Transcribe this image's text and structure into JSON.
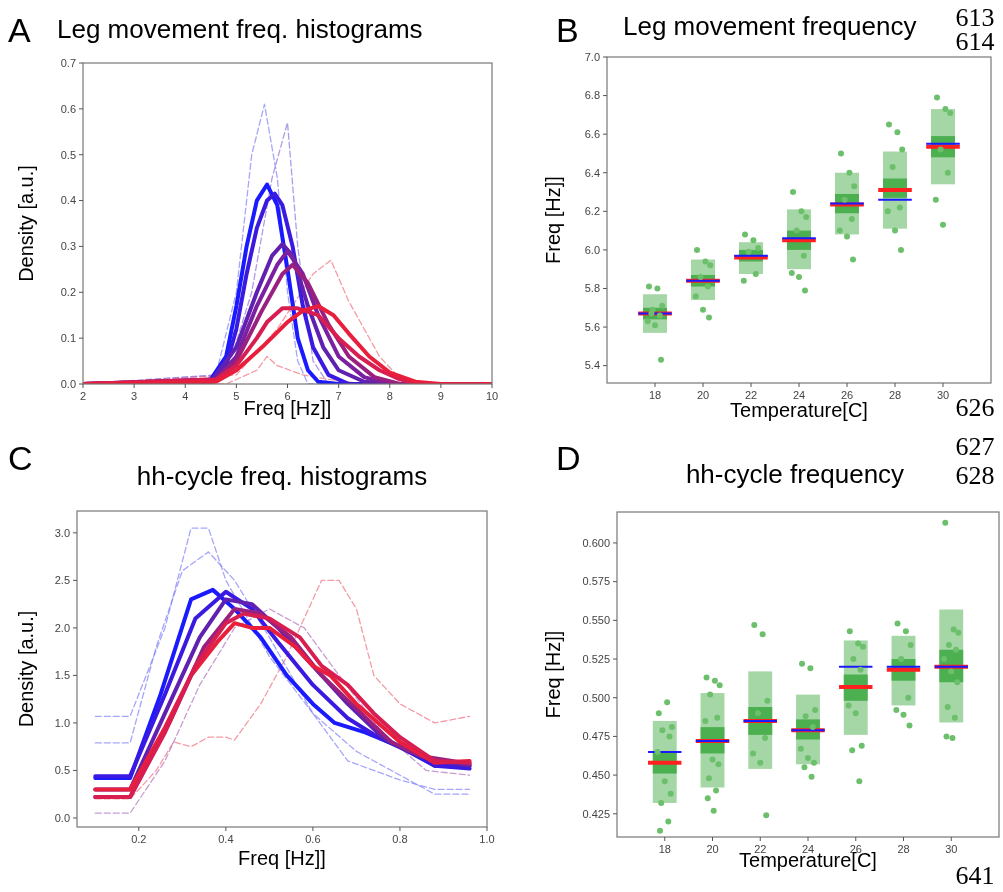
{
  "chart_data": [
    {
      "type": "line",
      "title": "Leg movement freq. histograms",
      "xlabel": "Freq [Hz]]",
      "ylabel": "Density [a.u.]",
      "annotations": [
        "A"
      ],
      "line_style": "solid",
      "xlim": [
        2,
        10
      ],
      "ylim": [
        0,
        0.7
      ],
      "xticks": [
        2,
        3,
        4,
        5,
        6,
        7,
        8,
        9,
        10
      ],
      "yticks": [
        {
          "value": 0,
          "label": "0.0"
        },
        0.1,
        0.2,
        0.3,
        0.4,
        0.5,
        0.6,
        0.7
      ],
      "series": [
        {
          "color": "#8080f8",
          "line_style": "dashed",
          "x": [
            2,
            4.6,
            5,
            5.3,
            5.55,
            5.8,
            6.0,
            6.2,
            6.4,
            10
          ],
          "values": [
            0,
            0.02,
            0.2,
            0.5,
            0.61,
            0.45,
            0.2,
            0.05,
            0,
            0
          ]
        },
        {
          "color": "#9070e0",
          "line_style": "dashed",
          "x": [
            2,
            4.8,
            5.3,
            5.7,
            6.0,
            6.2,
            6.5,
            6.8,
            10
          ],
          "values": [
            0,
            0.02,
            0.2,
            0.45,
            0.57,
            0.3,
            0.05,
            0,
            0
          ]
        },
        {
          "color": "#f07080",
          "line_style": "dashed",
          "x": [
            2,
            5,
            5.8,
            6.5,
            6.85,
            7.2,
            7.8,
            8.3,
            10
          ],
          "values": [
            0,
            0.02,
            0.12,
            0.24,
            0.27,
            0.18,
            0.06,
            0,
            0
          ]
        },
        {
          "color": "#f07080",
          "line_style": "dashed",
          "x": [
            2,
            4.8,
            5.4,
            5.6,
            5.8,
            6.3,
            6.8,
            7.5,
            10
          ],
          "values": [
            0,
            0,
            0.03,
            0.06,
            0.04,
            0.02,
            0.01,
            0,
            0
          ]
        },
        {
          "color": "#1a1aff",
          "x": [
            2,
            4,
            4.5,
            4.8,
            5.0,
            5.2,
            5.4,
            5.6,
            5.8,
            6.0,
            6.2,
            6.4,
            6.6,
            7,
            10
          ],
          "values": [
            0,
            0,
            0.01,
            0.06,
            0.17,
            0.3,
            0.4,
            0.435,
            0.39,
            0.25,
            0.1,
            0.03,
            0.005,
            0,
            0
          ]
        },
        {
          "color": "#3a1ae0",
          "x": [
            2,
            4.5,
            4.8,
            5.0,
            5.2,
            5.4,
            5.6,
            5.75,
            5.9,
            6.1,
            6.3,
            6.5,
            6.8,
            7.2,
            10
          ],
          "values": [
            0,
            0.005,
            0.04,
            0.12,
            0.24,
            0.34,
            0.4,
            0.415,
            0.39,
            0.3,
            0.17,
            0.08,
            0.02,
            0,
            0
          ]
        },
        {
          "color": "#6020b0",
          "x": [
            2,
            4.5,
            5,
            5.4,
            5.7,
            5.9,
            6.1,
            6.4,
            6.7,
            7,
            7.5,
            8,
            10
          ],
          "values": [
            0,
            0.005,
            0.08,
            0.2,
            0.28,
            0.305,
            0.28,
            0.17,
            0.08,
            0.03,
            0.005,
            0,
            0
          ]
        },
        {
          "color": "#7a20a0",
          "x": [
            2,
            4.6,
            5,
            5.4,
            5.8,
            6.0,
            6.3,
            6.6,
            7,
            7.5,
            8,
            10
          ],
          "values": [
            0,
            0.01,
            0.06,
            0.17,
            0.26,
            0.29,
            0.24,
            0.15,
            0.06,
            0.015,
            0,
            0
          ]
        },
        {
          "color": "#9a2080",
          "x": [
            2,
            4.6,
            5,
            5.5,
            5.9,
            6.1,
            6.4,
            6.8,
            7.2,
            7.7,
            8.2,
            10
          ],
          "values": [
            0,
            0.01,
            0.05,
            0.16,
            0.24,
            0.26,
            0.22,
            0.13,
            0.06,
            0.015,
            0,
            0
          ]
        },
        {
          "color": "#d81e50",
          "x": [
            2,
            4.6,
            5,
            5.4,
            5.6,
            5.9,
            6.2,
            6.6,
            7,
            7.4,
            7.8,
            8.2,
            8.6,
            10
          ],
          "values": [
            0,
            0.01,
            0.04,
            0.1,
            0.135,
            0.165,
            0.165,
            0.15,
            0.1,
            0.06,
            0.03,
            0.01,
            0,
            0
          ]
        },
        {
          "color": "#e81e3c",
          "x": [
            2,
            4.6,
            5,
            5.5,
            6,
            6.3,
            6.6,
            6.9,
            7.2,
            7.6,
            8,
            8.5,
            9,
            10
          ],
          "values": [
            0,
            0.005,
            0.03,
            0.08,
            0.135,
            0.16,
            0.17,
            0.15,
            0.11,
            0.06,
            0.025,
            0.005,
            0,
            0
          ]
        }
      ]
    },
    {
      "type": "bar",
      "title": "Leg movement frequency",
      "xlabel": "Temperature[C]",
      "ylabel": "Freq [Hz]]",
      "annotations": [
        "B",
        "613",
        "614",
        "626"
      ],
      "xlim": [
        16,
        32
      ],
      "ylim": [
        5.31,
        7.0
      ],
      "xticks": [
        18,
        20,
        22,
        24,
        26,
        28,
        30
      ],
      "yticks": [
        5.4,
        5.6,
        5.8,
        {
          "value": 6,
          "label": "6.0"
        },
        6.2,
        6.4,
        6.6,
        6.8,
        {
          "value": 7,
          "label": "7.0"
        }
      ],
      "series": [
        {
          "color": "#a5d6a5",
          "x": [
            18,
            20,
            22,
            24,
            26,
            28,
            30
          ],
          "base": [
            5.57,
            5.74,
            5.875,
            5.9,
            6.08,
            6.11,
            6.34
          ],
          "values": [
            0.2,
            0.21,
            0.165,
            0.31,
            0.32,
            0.4,
            0.39
          ]
        },
        {
          "color": "#4caf50",
          "x": [
            18,
            20,
            22,
            24,
            26,
            28,
            30
          ],
          "base": [
            5.64,
            5.81,
            5.94,
            6.0,
            6.19,
            6.27,
            6.48
          ],
          "values": [
            0.06,
            0.06,
            0.06,
            0.1,
            0.1,
            0.1,
            0.11
          ]
        },
        {
          "type": "line",
          "line_style": "solid",
          "color": "#ff2020",
          "x": [
            17.3,
            18.7,
            19,
            19.3,
            20.7,
            21,
            21.3,
            22.7,
            23,
            23.3,
            24.7,
            25,
            25.3,
            26.7,
            27,
            27.3,
            28.7,
            29,
            29.3,
            30.7
          ],
          "values": [
            5.67,
            5.67,
            null,
            5.84,
            5.84,
            null,
            5.96,
            5.96,
            null,
            6.05,
            6.05,
            null,
            6.235,
            6.235,
            null,
            6.31,
            6.31,
            null,
            6.535,
            6.535
          ]
        },
        {
          "type": "line",
          "line_style": "solid",
          "color": "#1a1aff",
          "x": [
            17.3,
            18.7,
            19,
            19.3,
            20.7,
            21,
            21.3,
            22.7,
            23,
            23.3,
            24.7,
            25,
            25.3,
            26.7,
            27,
            27.3,
            28.7,
            29,
            29.3,
            30.7
          ],
          "values": [
            5.67,
            5.67,
            null,
            5.84,
            5.84,
            null,
            5.97,
            5.97,
            null,
            6.06,
            6.06,
            null,
            6.24,
            6.24,
            null,
            6.26,
            6.26,
            null,
            6.55,
            6.55
          ]
        },
        {
          "type": "scatter",
          "color": "#6cc06c",
          "marker": "circle",
          "x": [
            17.75,
            18.1,
            18.3,
            17.9,
            18.2,
            17.7,
            18,
            18.25,
            17.85,
            19.75,
            20.1,
            20.3,
            19.9,
            20.2,
            19.7,
            20,
            20.25,
            21.75,
            22.1,
            22.3,
            21.9,
            22.2,
            21.7,
            23.75,
            24.1,
            24.3,
            23.9,
            24.2,
            23.7,
            24,
            24.25,
            25.75,
            26.1,
            26.3,
            25.9,
            26.2,
            25.7,
            26,
            26.25,
            27.75,
            28.1,
            28.3,
            27.9,
            28.2,
            27.7,
            28,
            28.25,
            29.75,
            30.1,
            30.3,
            29.9,
            30.2,
            29.7,
            30
          ],
          "values": [
            5.81,
            5.8,
            5.71,
            5.69,
            5.66,
            5.63,
            5.61,
            5.43,
            5.67,
            6.0,
            5.94,
            5.92,
            5.86,
            5.81,
            5.76,
            5.69,
            5.65,
            6.08,
            6.05,
            6.01,
            5.99,
            5.875,
            5.84,
            6.3,
            6.2,
            6.17,
            6.1,
            5.97,
            5.88,
            5.86,
            5.79,
            6.5,
            6.4,
            6.33,
            6.26,
            6.16,
            6.1,
            6.07,
            5.95,
            6.65,
            6.61,
            6.52,
            6.43,
            6.22,
            6.2,
            6.1,
            6.0,
            6.79,
            6.73,
            6.71,
            6.52,
            6.4,
            6.26,
            6.13
          ]
        }
      ]
    },
    {
      "type": "line",
      "title": "hh-cycle freq. histograms",
      "xlabel": "Freq [Hz]]",
      "ylabel": "Density [a.u.]",
      "annotations": [
        "C"
      ],
      "line_style": "solid",
      "xlim": [
        0.058,
        1.0
      ],
      "ylim": [
        -0.095,
        3.23
      ],
      "xticks": [
        0.2,
        0.4,
        0.6,
        0.8,
        {
          "value": 1,
          "label": "1.0"
        }
      ],
      "yticks": [
        {
          "value": 0,
          "label": "0.0"
        },
        0.5,
        {
          "value": 1,
          "label": "1.0"
        },
        1.5,
        {
          "value": 2,
          "label": "2.0"
        },
        2.5,
        {
          "value": 3,
          "label": "3.0"
        }
      ],
      "series": [
        {
          "color": "#8080f8",
          "line_style": "dashed",
          "x": [
            0.1,
            0.18,
            0.26,
            0.32,
            0.36,
            0.4,
            0.5,
            0.6,
            0.7,
            0.8,
            0.88,
            0.96
          ],
          "values": [
            1.07,
            1.07,
            2.0,
            3.05,
            3.05,
            2.5,
            1.7,
            1.1,
            0.7,
            0.45,
            0.25,
            0.25
          ]
        },
        {
          "color": "#f07080",
          "line_style": "dashed",
          "x": [
            0.1,
            0.18,
            0.24,
            0.28,
            0.32,
            0.36,
            0.4,
            0.42,
            0.48,
            0.54,
            0.6,
            0.62,
            0.66,
            0.7,
            0.74,
            0.8,
            0.88,
            0.96
          ],
          "values": [
            0.2,
            0.2,
            0.5,
            0.8,
            0.75,
            0.85,
            0.85,
            0.82,
            1.2,
            1.7,
            2.3,
            2.5,
            2.5,
            2.2,
            1.5,
            1.2,
            1.0,
            1.07
          ]
        },
        {
          "color": "#b070c0",
          "line_style": "dashed",
          "x": [
            0.1,
            0.18,
            0.26,
            0.34,
            0.42,
            0.5,
            0.58,
            0.66,
            0.76,
            0.86,
            0.96
          ],
          "values": [
            0.05,
            0.05,
            0.6,
            1.4,
            2.0,
            2.2,
            2.0,
            1.5,
            0.9,
            0.5,
            0.45
          ]
        },
        {
          "color": "#8080f8",
          "line_style": "dashed",
          "x": [
            0.1,
            0.18,
            0.24,
            0.3,
            0.36,
            0.42,
            0.5,
            0.6,
            0.68,
            0.8,
            0.88,
            0.96
          ],
          "values": [
            0.79,
            0.79,
            1.8,
            2.6,
            2.8,
            2.5,
            1.9,
            1.1,
            0.6,
            0.4,
            0.3,
            0.3
          ]
        },
        {
          "color": "#1a1aff",
          "x": [
            0.1,
            0.18,
            0.25,
            0.32,
            0.37,
            0.42,
            0.48,
            0.54,
            0.6,
            0.65,
            0.72,
            0.8,
            0.88,
            0.96
          ],
          "values": [
            0.42,
            0.42,
            1.3,
            2.3,
            2.4,
            2.2,
            1.9,
            1.5,
            1.2,
            1.0,
            0.9,
            0.75,
            0.55,
            0.55
          ]
        },
        {
          "color": "#3a1ae0",
          "x": [
            0.1,
            0.18,
            0.26,
            0.33,
            0.4,
            0.46,
            0.52,
            0.6,
            0.68,
            0.75,
            0.82,
            0.88,
            0.96
          ],
          "values": [
            0.44,
            0.44,
            1.3,
            2.1,
            2.38,
            2.2,
            1.85,
            1.4,
            1.05,
            0.85,
            0.7,
            0.55,
            0.52
          ]
        },
        {
          "color": "#6020b0",
          "x": [
            0.1,
            0.18,
            0.27,
            0.34,
            0.4,
            0.46,
            0.52,
            0.6,
            0.68,
            0.76,
            0.82,
            0.88,
            0.96
          ],
          "values": [
            0.3,
            0.3,
            1.2,
            1.9,
            2.3,
            2.25,
            2.0,
            1.6,
            1.2,
            0.85,
            0.7,
            0.6,
            0.55
          ]
        },
        {
          "color": "#9a2080",
          "x": [
            0.1,
            0.18,
            0.27,
            0.35,
            0.42,
            0.48,
            0.55,
            0.62,
            0.7,
            0.78,
            0.85,
            0.96
          ],
          "values": [
            0.22,
            0.22,
            1.0,
            1.8,
            2.2,
            2.15,
            1.9,
            1.5,
            1.15,
            0.8,
            0.65,
            0.57
          ]
        },
        {
          "color": "#e81e3c",
          "x": [
            0.1,
            0.18,
            0.26,
            0.32,
            0.38,
            0.42,
            0.46,
            0.5,
            0.56,
            0.6,
            0.64,
            0.7,
            0.75,
            0.8,
            0.88,
            0.96
          ],
          "values": [
            0.3,
            0.3,
            0.95,
            1.5,
            1.85,
            2.05,
            2.0,
            2.0,
            1.8,
            1.6,
            1.5,
            1.2,
            1.0,
            0.8,
            0.58,
            0.6
          ]
        },
        {
          "color": "#d81e50",
          "x": [
            0.1,
            0.18,
            0.26,
            0.33,
            0.4,
            0.44,
            0.5,
            0.57,
            0.62,
            0.68,
            0.74,
            0.8,
            0.88,
            0.96
          ],
          "values": [
            0.22,
            0.22,
            0.9,
            1.6,
            2.05,
            2.15,
            2.1,
            1.9,
            1.6,
            1.4,
            1.1,
            0.85,
            0.6,
            0.58
          ]
        }
      ]
    },
    {
      "type": "bar",
      "title": "hh-cycle frequency",
      "xlabel": "Temperature[C]",
      "ylabel": "Freq [Hz]]",
      "annotations": [
        "D",
        "627",
        "628",
        "641"
      ],
      "xlim": [
        16,
        32
      ],
      "ylim": [
        0.41,
        0.62
      ],
      "xticks": [
        18,
        20,
        22,
        24,
        26,
        28,
        30
      ],
      "yticks": [
        {
          "value": 0.425,
          "label": "0.425"
        },
        {
          "value": 0.45,
          "label": "0.450"
        },
        {
          "value": 0.475,
          "label": "0.475"
        },
        {
          "value": 0.5,
          "label": "0.500"
        },
        {
          "value": 0.525,
          "label": "0.525"
        },
        {
          "value": 0.55,
          "label": "0.550"
        },
        {
          "value": 0.575,
          "label": "0.575"
        },
        {
          "value": 0.6,
          "label": "0.600"
        }
      ],
      "series": [
        {
          "color": "#a5d6a5",
          "x": [
            18,
            20,
            22,
            24,
            26,
            28,
            30
          ],
          "base": [
            0.432,
            0.442,
            0.454,
            0.457,
            0.476,
            0.495,
            0.484
          ],
          "values": [
            0.053,
            0.061,
            0.063,
            0.045,
            0.061,
            0.045,
            0.073
          ]
        },
        {
          "color": "#4caf50",
          "x": [
            18,
            20,
            22,
            24,
            26,
            28,
            30
          ],
          "base": [
            0.451,
            0.464,
            0.476,
            0.473,
            0.498,
            0.511,
            0.51
          ],
          "values": [
            0.014,
            0.017,
            0.018,
            0.013,
            0.017,
            0.014,
            0.021
          ]
        },
        {
          "type": "line",
          "line_style": "solid",
          "color": "#ff2020",
          "x": [
            17.3,
            18.7,
            19,
            19.3,
            20.7,
            21,
            21.3,
            22.7,
            23,
            23.3,
            24.7,
            25,
            25.3,
            26.7,
            27,
            27.3,
            28.7,
            29,
            29.3,
            30.7
          ],
          "values": [
            0.458,
            0.458,
            null,
            0.472,
            0.472,
            null,
            0.485,
            0.485,
            null,
            0.479,
            0.479,
            null,
            0.507,
            0.507,
            null,
            0.518,
            0.518,
            null,
            0.52,
            0.52
          ]
        },
        {
          "type": "line",
          "line_style": "solid",
          "color": "#1a1aff",
          "x": [
            17.3,
            18.7,
            19,
            19.3,
            20.7,
            21,
            21.3,
            22.7,
            23,
            23.3,
            24.7,
            25,
            25.3,
            26.7,
            27,
            27.3,
            28.7,
            29,
            29.3,
            30.7
          ],
          "values": [
            0.465,
            0.465,
            null,
            0.472,
            0.472,
            null,
            0.485,
            0.485,
            null,
            0.479,
            0.479,
            null,
            0.52,
            0.52,
            null,
            0.52,
            0.52,
            null,
            0.52,
            0.52
          ]
        },
        {
          "type": "scatter",
          "color": "#6cc06c",
          "marker": "circle",
          "x": [
            17.75,
            18.1,
            18.3,
            17.9,
            18.2,
            17.7,
            18,
            18.25,
            17.85,
            18.15,
            17.8,
            19.75,
            20.1,
            20.3,
            19.9,
            20.2,
            19.7,
            20,
            20.25,
            19.85,
            20.15,
            19.8,
            20.05,
            21.75,
            22.1,
            22.3,
            21.9,
            22.2,
            21.7,
            22,
            22.25,
            23.75,
            24.1,
            24.3,
            23.9,
            24.2,
            23.7,
            24,
            24.25,
            23.85,
            24.15,
            25.75,
            26.1,
            26.3,
            25.9,
            26.2,
            25.7,
            26,
            26.25,
            25.85,
            26.15,
            27.75,
            28.1,
            28.3,
            27.9,
            28.2,
            27.7,
            28,
            28.25,
            29.75,
            30.1,
            30.3,
            29.9,
            30.2,
            29.7,
            30,
            30.25,
            29.85,
            30.15,
            29.8,
            30.05
          ],
          "values": [
            0.49,
            0.497,
            0.481,
            0.479,
            0.475,
            0.465,
            0.446,
            0.438,
            0.432,
            0.42,
            0.414,
            0.513,
            0.511,
            0.508,
            0.502,
            0.487,
            0.485,
            0.46,
            0.457,
            0.448,
            0.44,
            0.435,
            0.427,
            0.547,
            0.541,
            0.498,
            0.49,
            0.474,
            0.464,
            0.458,
            0.424,
            0.522,
            0.519,
            0.492,
            0.488,
            0.481,
            0.467,
            0.461,
            0.458,
            0.455,
            0.449,
            0.543,
            0.535,
            0.533,
            0.525,
            0.518,
            0.495,
            0.49,
            0.469,
            0.466,
            0.446,
            0.548,
            0.543,
            0.534,
            0.525,
            0.5,
            0.492,
            0.489,
            0.482,
            0.613,
            0.544,
            0.542,
            0.534,
            0.531,
            0.525,
            0.517,
            0.51,
            0.494,
            0.487,
            0.475,
            0.474
          ]
        }
      ]
    }
  ]
}
